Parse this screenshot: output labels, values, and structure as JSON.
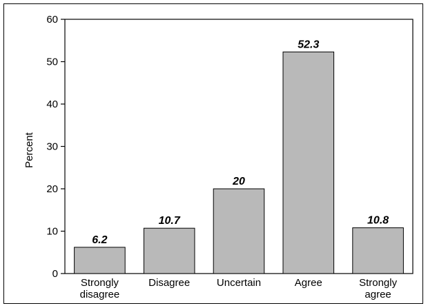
{
  "chart_data": {
    "type": "bar",
    "categories": [
      [
        "Strongly",
        "disagree"
      ],
      [
        "Disagree"
      ],
      [
        "Uncertain"
      ],
      [
        "Agree"
      ],
      [
        "Strongly",
        "agree"
      ]
    ],
    "values": [
      6.2,
      10.7,
      20,
      52.3,
      10.8
    ],
    "data_labels": [
      "6.2",
      "10.7",
      "20",
      "52.3",
      "10.8"
    ],
    "title": "",
    "xlabel": "",
    "ylabel": "Percent",
    "ylim": [
      0,
      60
    ],
    "yticks": [
      0,
      10,
      20,
      30,
      40,
      50,
      60
    ],
    "grid": false,
    "bar_color": "#b9b9b9",
    "bar_edge_color": "#000000"
  }
}
